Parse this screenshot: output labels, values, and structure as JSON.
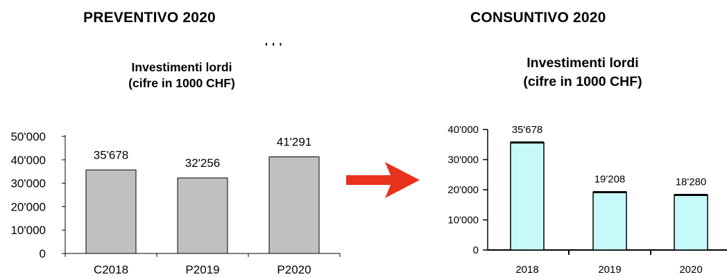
{
  "headings": {
    "left": "PREVENTIVO 2020",
    "right": "CONSUNTIVO 2020",
    "stray_mark": "' ' '"
  },
  "chart_data": [
    {
      "type": "bar",
      "title": "Investimenti lordi",
      "subtitle": "(cifre in 1000 CHF)",
      "categories": [
        "C2018",
        "P2019",
        "P2020"
      ],
      "values": [
        35678,
        32256,
        41291
      ],
      "value_labels": [
        "35'678",
        "32'256",
        "41'291"
      ],
      "y_ticks": [
        "0",
        "10'000",
        "20'000",
        "30'000",
        "40'000",
        "50'000"
      ],
      "ylim": [
        0,
        50000
      ],
      "xlabel": "",
      "ylabel": "",
      "bar_color": "#c0c0c0",
      "grid": false
    },
    {
      "type": "bar",
      "title": "Investimenti lordi",
      "subtitle": "(cifre in 1000 CHF)",
      "categories": [
        "2018",
        "2019",
        "2020"
      ],
      "values": [
        35678,
        19208,
        18280
      ],
      "value_labels": [
        "35'678",
        "19'208",
        "18'280"
      ],
      "y_ticks": [
        "0",
        "10'000",
        "20'000",
        "30'000",
        "40'000"
      ],
      "ylim": [
        0,
        40000
      ],
      "xlabel": "",
      "ylabel": "",
      "bar_color": "#c6fafa",
      "grid": false
    }
  ],
  "arrow_color": "#e8321e"
}
